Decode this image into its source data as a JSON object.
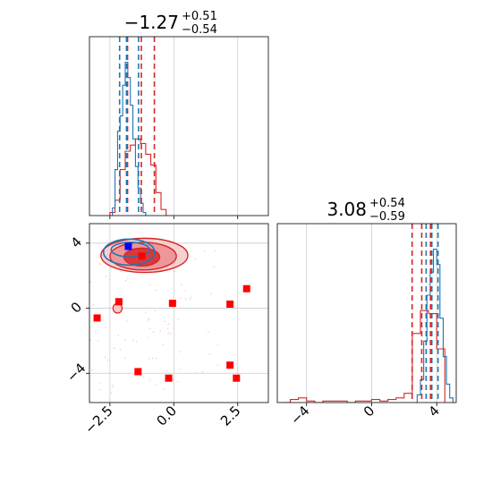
{
  "chart_data": {
    "type": "scatter",
    "subtype": "corner-plot",
    "colors": {
      "red": "#d62728",
      "blue": "#1f77b4",
      "marker_red": "#ff0000",
      "marker_blue": "#0000ff"
    },
    "parameters": [
      {
        "title": {
          "value": "−1.27",
          "plus": "+0.51",
          "minus": "−0.54"
        },
        "range": [
          -3.3,
          3.7
        ],
        "ticks": [
          -2.5,
          0.0,
          2.5
        ],
        "tick_labels": [
          "−2.5",
          "0.0",
          "2.5"
        ],
        "quantiles": {
          "red": [
            -1.81,
            -1.27,
            -0.76
          ],
          "blue": [
            -2.12,
            -1.85,
            -1.38
          ]
        }
      },
      {
        "title": {
          "value": "3.08",
          "plus": "+0.54",
          "minus": "−0.59"
        },
        "range": [
          -5.8,
          5.2
        ],
        "ticks": [
          -4,
          0,
          4
        ],
        "tick_labels": [
          "−4",
          "0",
          "4"
        ],
        "quantiles": {
          "red": [
            2.49,
            3.08,
            3.62
          ],
          "blue": [
            3.35,
            3.7,
            4.08
          ]
        }
      }
    ],
    "hist1d": {
      "x": {
        "red": {
          "edges": [
            -2.5,
            -2.3,
            -2.1,
            -1.9,
            -1.7,
            -1.5,
            -1.3,
            -1.1,
            -0.9,
            -0.7,
            -0.5,
            -0.3
          ],
          "counts": [
            0.02,
            0.1,
            0.3,
            0.42,
            0.46,
            0.5,
            0.47,
            0.4,
            0.33,
            0.15,
            0.04
          ]
        },
        "blue": {
          "edges": [
            -2.4,
            -2.3,
            -2.2,
            -2.1,
            -2.0,
            -1.9,
            -1.8,
            -1.7,
            -1.6,
            -1.5,
            -1.4,
            -1.3,
            -1.2,
            -1.1
          ],
          "counts": [
            0.05,
            0.3,
            0.55,
            0.65,
            0.85,
            1.0,
            0.9,
            0.72,
            0.5,
            0.32,
            0.18,
            0.08,
            0.02
          ]
        }
      },
      "y": {
        "red": {
          "edges": [
            -5.5,
            -5.0,
            -4.5,
            -4.0,
            -3.5,
            -3.0,
            -2.5,
            -2.0,
            -1.5,
            -1.0,
            -0.5,
            0.0,
            0.5,
            1.0,
            1.5,
            2.0,
            2.5,
            3.0,
            3.5,
            4.0,
            4.5
          ],
          "counts": [
            0.0,
            0.02,
            0.03,
            0.01,
            0.0,
            0.01,
            0.01,
            0.01,
            0.0,
            0.01,
            0.01,
            0.02,
            0.01,
            0.02,
            0.03,
            0.06,
            0.45,
            0.6,
            0.58,
            0.35
          ]
        },
        "blue": {
          "edges": [
            2.8,
            3.0,
            3.2,
            3.4,
            3.6,
            3.8,
            4.0,
            4.2,
            4.4,
            4.6,
            4.8,
            5.0
          ],
          "counts": [
            0.05,
            0.15,
            0.4,
            0.7,
            0.85,
            1.0,
            0.9,
            0.55,
            0.3,
            0.12,
            0.03
          ]
        }
      }
    },
    "contours": {
      "red": [
        {
          "center": [
            -1.15,
            3.25
          ],
          "radii": [
            1.7,
            1.05
          ]
        },
        {
          "center": [
            -1.2,
            3.2
          ],
          "radii": [
            1.3,
            0.85
          ]
        },
        {
          "center": [
            -1.25,
            3.15
          ],
          "radii": [
            0.7,
            0.55
          ]
        }
      ],
      "blue": [
        {
          "center": [
            -1.75,
            3.45
          ],
          "radii": [
            1.0,
            0.8
          ]
        },
        {
          "center": [
            -1.7,
            3.6
          ],
          "radii": [
            0.75,
            0.45
          ]
        }
      ]
    },
    "markers": {
      "red": [
        [
          -3.0,
          -0.6
        ],
        [
          -2.15,
          0.4
        ],
        [
          -0.05,
          0.3
        ],
        [
          2.2,
          0.25
        ],
        [
          2.85,
          1.2
        ],
        [
          -1.4,
          -3.9
        ],
        [
          -0.2,
          -4.3
        ],
        [
          2.2,
          -3.5
        ],
        [
          2.45,
          -4.3
        ],
        [
          -1.25,
          3.2
        ]
      ],
      "blue": [
        [
          -1.78,
          3.8
        ]
      ]
    }
  }
}
